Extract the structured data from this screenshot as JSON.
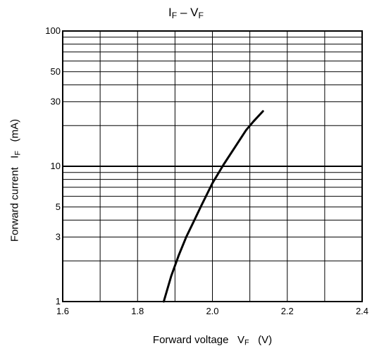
{
  "title": {
    "main": "I",
    "sub": "F",
    "mid": " – V",
    "sub2": "F"
  },
  "xlabel": {
    "text": "Forward voltage   V",
    "sub": "F",
    "unit": "   (V)"
  },
  "ylabel": {
    "text": "Forward current   I",
    "sub": "F",
    "unit": "   (mA)"
  },
  "chart_data": {
    "type": "line",
    "title": "IF – VF",
    "xlabel": "Forward voltage VF (V)",
    "ylabel": "Forward current IF (mA)",
    "xlim": [
      1.6,
      2.4
    ],
    "ylim": [
      1,
      100
    ],
    "yscale": "log",
    "grid": true,
    "xticks": [
      1.6,
      1.8,
      2.0,
      2.2,
      2.4
    ],
    "xtick_labels": [
      "1.6",
      "1.8",
      "2.0",
      "2.2",
      "2.4"
    ],
    "yticks": [
      1,
      3,
      5,
      10,
      30,
      50,
      100
    ],
    "ytick_labels": [
      "1",
      "3",
      "5",
      "10",
      "30",
      "50",
      "100"
    ],
    "series": [
      {
        "x": [
          1.87,
          1.89,
          1.91,
          1.93,
          1.95,
          1.97,
          2.0,
          2.03,
          2.06,
          2.09,
          2.11,
          2.135
        ],
        "y": [
          1.0,
          1.55,
          2.2,
          3.0,
          3.9,
          5.1,
          7.5,
          10.3,
          13.8,
          18.5,
          21.5,
          25.5
        ]
      }
    ]
  }
}
